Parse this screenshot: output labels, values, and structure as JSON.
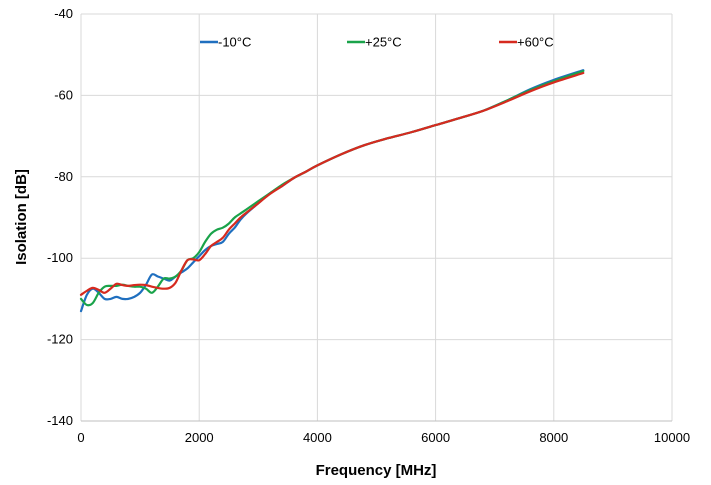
{
  "chart_data": {
    "type": "line",
    "title": "",
    "xlabel": "Frequency [MHz]",
    "ylabel": "Isolation [dB]",
    "xlim": [
      0,
      10000
    ],
    "ylim": [
      -140,
      -40
    ],
    "xticks": [
      0,
      2000,
      4000,
      6000,
      8000,
      10000
    ],
    "yticks": [
      -140,
      -120,
      -100,
      -80,
      -60,
      -40
    ],
    "grid": true,
    "legend_position": "top-center",
    "series": [
      {
        "name": "-10°C",
        "color": "#1f6fbf",
        "x": [
          0,
          100,
          200,
          300,
          400,
          500,
          600,
          700,
          800,
          900,
          1000,
          1100,
          1200,
          1300,
          1400,
          1500,
          1600,
          1700,
          1800,
          1900,
          2000,
          2100,
          2200,
          2300,
          2400,
          2500,
          2600,
          2700,
          2800,
          3000,
          3200,
          3400,
          3600,
          3800,
          4000,
          4400,
          4800,
          5200,
          5600,
          6000,
          6400,
          6800,
          7200,
          7600,
          8000,
          8500
        ],
        "y": [
          -113,
          -109,
          -107.5,
          -108.5,
          -110,
          -110,
          -109.5,
          -110,
          -110,
          -109.5,
          -108.5,
          -106.5,
          -104,
          -104.5,
          -105,
          -105.5,
          -104.5,
          -103.5,
          -102.5,
          -101,
          -99.5,
          -98,
          -97,
          -96.5,
          -96,
          -94,
          -92.5,
          -90.5,
          -89,
          -86.5,
          -84,
          -82.3,
          -80.3,
          -78.8,
          -77.2,
          -74.5,
          -72.2,
          -70.5,
          -69,
          -67.3,
          -65.6,
          -63.8,
          -61.3,
          -58.5,
          -56.2,
          -53.8
        ]
      },
      {
        "name": "+25°C",
        "color": "#1aa34a",
        "x": [
          0,
          100,
          200,
          300,
          400,
          500,
          600,
          700,
          800,
          900,
          1000,
          1100,
          1200,
          1300,
          1400,
          1500,
          1600,
          1700,
          1800,
          1900,
          2000,
          2100,
          2200,
          2300,
          2400,
          2500,
          2600,
          2700,
          2800,
          3000,
          3200,
          3400,
          3600,
          3800,
          4000,
          4400,
          4800,
          5200,
          5600,
          6000,
          6400,
          6800,
          7200,
          7600,
          8000,
          8500
        ],
        "y": [
          -110,
          -111.5,
          -111,
          -108.5,
          -107,
          -106.8,
          -106.8,
          -106.5,
          -106.8,
          -107,
          -107,
          -107.5,
          -108.5,
          -107,
          -105,
          -105,
          -104.5,
          -103,
          -100.5,
          -100,
          -98.5,
          -96,
          -94,
          -93,
          -92.5,
          -91.5,
          -90,
          -89,
          -88,
          -86,
          -84,
          -82,
          -80.3,
          -78.8,
          -77.2,
          -74.5,
          -72.2,
          -70.5,
          -69,
          -67.3,
          -65.6,
          -63.8,
          -61.3,
          -58.7,
          -56.5,
          -54
        ]
      },
      {
        "name": "+60°C",
        "color": "#d62a1f",
        "x": [
          0,
          100,
          200,
          300,
          400,
          500,
          600,
          700,
          800,
          900,
          1000,
          1100,
          1200,
          1300,
          1400,
          1500,
          1600,
          1700,
          1800,
          1900,
          2000,
          2100,
          2200,
          2300,
          2400,
          2500,
          2600,
          2700,
          2800,
          3000,
          3200,
          3400,
          3600,
          3800,
          4000,
          4400,
          4800,
          5200,
          5600,
          6000,
          6400,
          6800,
          7200,
          7600,
          8000,
          8500
        ],
        "y": [
          -109,
          -108,
          -107.3,
          -107.8,
          -108.5,
          -107.5,
          -106.3,
          -106.6,
          -106.8,
          -106.6,
          -106.5,
          -106.6,
          -107,
          -107.3,
          -107.5,
          -107.3,
          -106,
          -103,
          -100.5,
          -100.3,
          -100.5,
          -99,
          -97,
          -96,
          -95,
          -93,
          -91.5,
          -90,
          -88.8,
          -86.5,
          -84.2,
          -82.3,
          -80.3,
          -78.8,
          -77.2,
          -74.5,
          -72.2,
          -70.5,
          -69,
          -67.3,
          -65.6,
          -63.8,
          -61.5,
          -59,
          -56.8,
          -54.5
        ]
      }
    ]
  }
}
